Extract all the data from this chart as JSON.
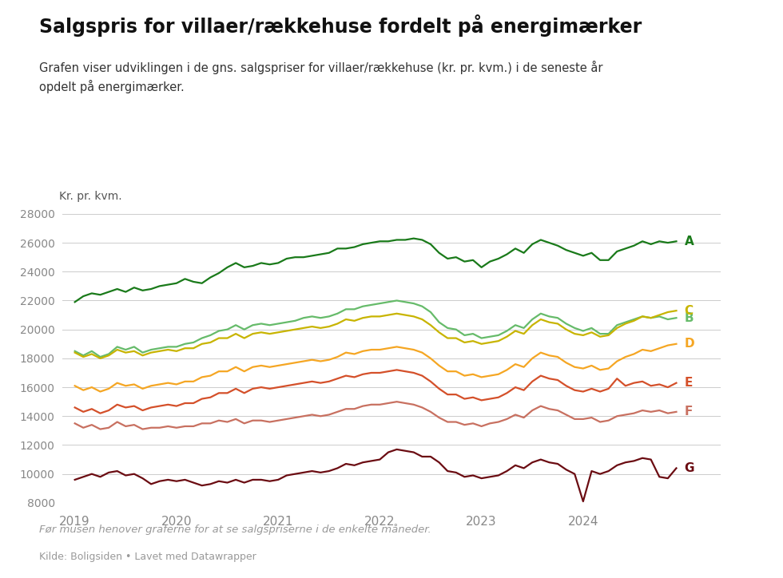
{
  "title": "Salgspris for villaer/rækkehuse fordelt på energimærker",
  "subtitle": "Grafen viser udviklingen i de gns. salgspriser for villaer/rækkehuse (kr. pr. kvm.) i de seneste år\nopdelt på energimærker.",
  "ylabel": "Kr. pr. kvm.",
  "footnote": "Før musen henover graferne for at se salgspriserne i de enkelte måneder.",
  "source": "Kilde: Boligsiden • Lavet med Datawrapper",
  "ylim": [
    8000,
    28000
  ],
  "yticks": [
    8000,
    10000,
    12000,
    14000,
    16000,
    18000,
    20000,
    22000,
    24000,
    26000,
    28000
  ],
  "background_color": "#ffffff",
  "series": {
    "A": {
      "color": "#1a7a1a",
      "data": [
        21900,
        22300,
        22500,
        22400,
        22600,
        22800,
        22600,
        22900,
        22700,
        22800,
        23000,
        23100,
        23200,
        23500,
        23300,
        23200,
        23600,
        23900,
        24300,
        24600,
        24300,
        24400,
        24600,
        24500,
        24600,
        24900,
        25000,
        25000,
        25100,
        25200,
        25300,
        25600,
        25600,
        25700,
        25900,
        26000,
        26100,
        26100,
        26200,
        26200,
        26300,
        26200,
        25900,
        25300,
        24900,
        25000,
        24700,
        24800,
        24300,
        24700,
        24900,
        25200,
        25600,
        25300,
        25900,
        26200,
        26000,
        25800,
        25500,
        25300,
        25100,
        25300,
        24800,
        24800,
        25400,
        25600,
        25800,
        26100,
        25900,
        26100,
        26000,
        26100
      ]
    },
    "B": {
      "color": "#66bb6a",
      "data": [
        18500,
        18200,
        18500,
        18100,
        18300,
        18800,
        18600,
        18800,
        18400,
        18600,
        18700,
        18800,
        18800,
        19000,
        19100,
        19400,
        19600,
        19900,
        20000,
        20300,
        20000,
        20300,
        20400,
        20300,
        20400,
        20500,
        20600,
        20800,
        20900,
        20800,
        20900,
        21100,
        21400,
        21400,
        21600,
        21700,
        21800,
        21900,
        22000,
        21900,
        21800,
        21600,
        21200,
        20500,
        20100,
        20000,
        19600,
        19700,
        19400,
        19500,
        19600,
        19900,
        20300,
        20100,
        20700,
        21100,
        20900,
        20800,
        20400,
        20100,
        19900,
        20100,
        19700,
        19700,
        20300,
        20500,
        20700,
        20900,
        20800,
        20900,
        20700,
        20800
      ]
    },
    "C": {
      "color": "#c8b400",
      "data": [
        18400,
        18100,
        18300,
        18000,
        18200,
        18600,
        18400,
        18500,
        18200,
        18400,
        18500,
        18600,
        18500,
        18700,
        18700,
        19000,
        19100,
        19400,
        19400,
        19700,
        19400,
        19700,
        19800,
        19700,
        19800,
        19900,
        20000,
        20100,
        20200,
        20100,
        20200,
        20400,
        20700,
        20600,
        20800,
        20900,
        20900,
        21000,
        21100,
        21000,
        20900,
        20700,
        20300,
        19800,
        19400,
        19400,
        19100,
        19200,
        19000,
        19100,
        19200,
        19500,
        19900,
        19700,
        20300,
        20700,
        20500,
        20400,
        20000,
        19700,
        19600,
        19800,
        19500,
        19600,
        20100,
        20400,
        20600,
        20900,
        20800,
        21000,
        21200,
        21300
      ]
    },
    "D": {
      "color": "#f5a623",
      "data": [
        16100,
        15800,
        16000,
        15700,
        15900,
        16300,
        16100,
        16200,
        15900,
        16100,
        16200,
        16300,
        16200,
        16400,
        16400,
        16700,
        16800,
        17100,
        17100,
        17400,
        17100,
        17400,
        17500,
        17400,
        17500,
        17600,
        17700,
        17800,
        17900,
        17800,
        17900,
        18100,
        18400,
        18300,
        18500,
        18600,
        18600,
        18700,
        18800,
        18700,
        18600,
        18400,
        18000,
        17500,
        17100,
        17100,
        16800,
        16900,
        16700,
        16800,
        16900,
        17200,
        17600,
        17400,
        18000,
        18400,
        18200,
        18100,
        17700,
        17400,
        17300,
        17500,
        17200,
        17300,
        17800,
        18100,
        18300,
        18600,
        18500,
        18700,
        18900,
        19000
      ]
    },
    "E": {
      "color": "#d4502a",
      "data": [
        14600,
        14300,
        14500,
        14200,
        14400,
        14800,
        14600,
        14700,
        14400,
        14600,
        14700,
        14800,
        14700,
        14900,
        14900,
        15200,
        15300,
        15600,
        15600,
        15900,
        15600,
        15900,
        16000,
        15900,
        16000,
        16100,
        16200,
        16300,
        16400,
        16300,
        16400,
        16600,
        16800,
        16700,
        16900,
        17000,
        17000,
        17100,
        17200,
        17100,
        17000,
        16800,
        16400,
        15900,
        15500,
        15500,
        15200,
        15300,
        15100,
        15200,
        15300,
        15600,
        16000,
        15800,
        16400,
        16800,
        16600,
        16500,
        16100,
        15800,
        15700,
        15900,
        15700,
        15900,
        16600,
        16100,
        16300,
        16400,
        16100,
        16200,
        16000,
        16300
      ]
    },
    "F": {
      "color": "#c87060",
      "data": [
        13500,
        13200,
        13400,
        13100,
        13200,
        13600,
        13300,
        13400,
        13100,
        13200,
        13200,
        13300,
        13200,
        13300,
        13300,
        13500,
        13500,
        13700,
        13600,
        13800,
        13500,
        13700,
        13700,
        13600,
        13700,
        13800,
        13900,
        14000,
        14100,
        14000,
        14100,
        14300,
        14500,
        14500,
        14700,
        14800,
        14800,
        14900,
        15000,
        14900,
        14800,
        14600,
        14300,
        13900,
        13600,
        13600,
        13400,
        13500,
        13300,
        13500,
        13600,
        13800,
        14100,
        13900,
        14400,
        14700,
        14500,
        14400,
        14100,
        13800,
        13800,
        13900,
        13600,
        13700,
        14000,
        14100,
        14200,
        14400,
        14300,
        14400,
        14200,
        14300
      ]
    },
    "G": {
      "color": "#6b0c12",
      "data": [
        9600,
        9800,
        10000,
        9800,
        10100,
        10200,
        9900,
        10000,
        9700,
        9300,
        9500,
        9600,
        9500,
        9600,
        9400,
        9200,
        9300,
        9500,
        9400,
        9600,
        9400,
        9600,
        9600,
        9500,
        9600,
        9900,
        10000,
        10100,
        10200,
        10100,
        10200,
        10400,
        10700,
        10600,
        10800,
        10900,
        11000,
        11500,
        11700,
        11600,
        11500,
        11200,
        11200,
        10800,
        10200,
        10100,
        9800,
        9900,
        9700,
        9800,
        9900,
        10200,
        10600,
        10400,
        10800,
        11000,
        10800,
        10700,
        10300,
        10000,
        8100,
        10200,
        10000,
        10200,
        10600,
        10800,
        10900,
        11100,
        11000,
        9800,
        9700,
        10400
      ]
    }
  }
}
